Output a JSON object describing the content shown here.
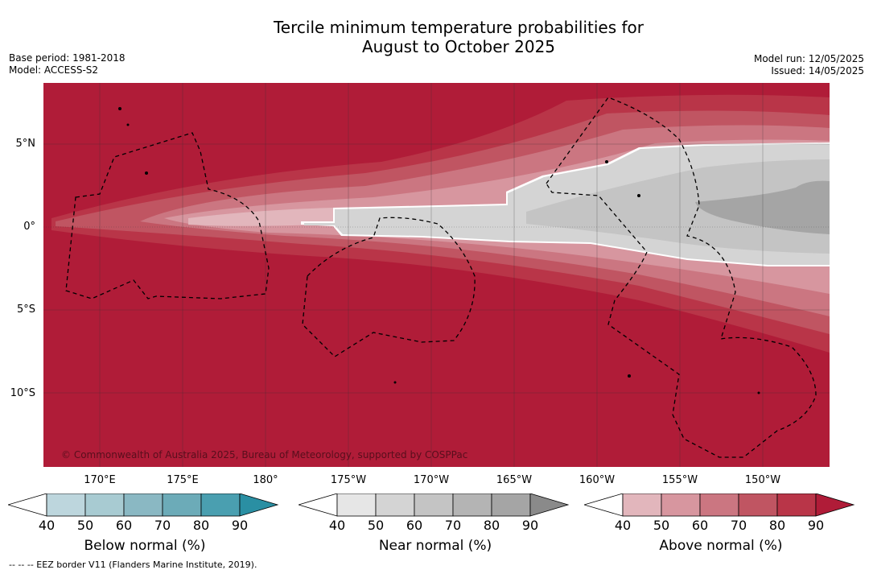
{
  "title": {
    "line1": "Tercile minimum temperature probabilities for",
    "line2": "August to October 2025"
  },
  "meta": {
    "base_period": "Base period: 1981-2018",
    "model": "Model: ACCESS-S2",
    "model_run": "Model run: 12/05/2025",
    "issued": "Issued: 14/05/2025"
  },
  "map": {
    "copyright": "© Commonwealth of Australia 2025, Bureau of Meteorology, supported by COSPPac",
    "lat_labels": [
      "5°N",
      "0°",
      "5°S",
      "10°S"
    ],
    "lon_labels": [
      "170°E",
      "175°E",
      "180°",
      "175°W",
      "170°W",
      "165°W",
      "160°W",
      "155°W",
      "150°W"
    ]
  },
  "colorbars": [
    {
      "title": "Below normal (%)",
      "ticks": [
        "40",
        "50",
        "60",
        "70",
        "80",
        "90"
      ],
      "colors": [
        "#ffffff",
        "#bdd6dd",
        "#a8cbd2",
        "#8ab8c3",
        "#6cabb8",
        "#4a9fb0",
        "#2a8fa3"
      ]
    },
    {
      "title": "Near normal (%)",
      "ticks": [
        "40",
        "50",
        "60",
        "70",
        "80",
        "90"
      ],
      "colors": [
        "#ffffff",
        "#e6e6e6",
        "#d4d4d4",
        "#c4c4c4",
        "#b4b4b4",
        "#a5a5a5",
        "#8a8a8a"
      ]
    },
    {
      "title": "Above normal (%)",
      "ticks": [
        "40",
        "50",
        "60",
        "70",
        "80",
        "90"
      ],
      "colors": [
        "#ffffff",
        "#e2b6bc",
        "#d7969f",
        "#cb7681",
        "#c05562",
        "#b93548",
        "#b01c38"
      ]
    }
  ],
  "footer": {
    "eez": "--  --  -- EEZ border V11 (Flanders Marine Institute, 2019)."
  }
}
